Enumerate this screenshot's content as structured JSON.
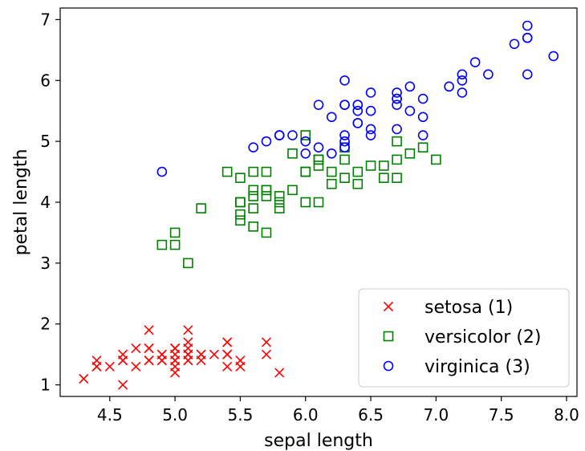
{
  "chart_data": {
    "type": "scatter",
    "title": "",
    "xlabel": "sepal length",
    "ylabel": "petal length",
    "xlim": [
      4.12,
      8.08
    ],
    "ylim": [
      0.81,
      7.19
    ],
    "xticks": [
      "4.5",
      "5.0",
      "5.5",
      "6.0",
      "6.5",
      "7.0",
      "7.5",
      "8.0"
    ],
    "yticks": [
      "1",
      "2",
      "3",
      "4",
      "5",
      "6",
      "7"
    ],
    "grid": false,
    "legend_position": "lower-right",
    "series": [
      {
        "name": "setosa (1)",
        "marker": "x",
        "color": "#ff0000",
        "points": [
          [
            5.1,
            1.4
          ],
          [
            4.9,
            1.4
          ],
          [
            4.7,
            1.3
          ],
          [
            4.6,
            1.5
          ],
          [
            5.0,
            1.4
          ],
          [
            5.4,
            1.7
          ],
          [
            4.6,
            1.4
          ],
          [
            5.0,
            1.5
          ],
          [
            4.4,
            1.4
          ],
          [
            4.9,
            1.5
          ],
          [
            5.4,
            1.5
          ],
          [
            4.8,
            1.6
          ],
          [
            4.8,
            1.4
          ],
          [
            4.3,
            1.1
          ],
          [
            5.8,
            1.2
          ],
          [
            5.7,
            1.5
          ],
          [
            5.4,
            1.3
          ],
          [
            5.1,
            1.4
          ],
          [
            5.7,
            1.7
          ],
          [
            5.1,
            1.5
          ],
          [
            5.4,
            1.7
          ],
          [
            5.1,
            1.5
          ],
          [
            4.6,
            1.0
          ],
          [
            5.1,
            1.7
          ],
          [
            4.8,
            1.9
          ],
          [
            5.0,
            1.6
          ],
          [
            5.0,
            1.6
          ],
          [
            5.2,
            1.5
          ],
          [
            5.2,
            1.4
          ],
          [
            4.7,
            1.6
          ],
          [
            4.8,
            1.6
          ],
          [
            5.4,
            1.5
          ],
          [
            5.2,
            1.5
          ],
          [
            5.5,
            1.4
          ],
          [
            4.9,
            1.5
          ],
          [
            5.0,
            1.2
          ],
          [
            5.5,
            1.3
          ],
          [
            4.9,
            1.4
          ],
          [
            4.4,
            1.3
          ],
          [
            5.1,
            1.5
          ],
          [
            5.0,
            1.3
          ],
          [
            4.5,
            1.3
          ],
          [
            4.4,
            1.3
          ],
          [
            5.0,
            1.6
          ],
          [
            5.1,
            1.9
          ],
          [
            4.8,
            1.4
          ],
          [
            5.1,
            1.6
          ],
          [
            4.6,
            1.4
          ],
          [
            5.3,
            1.5
          ],
          [
            5.0,
            1.4
          ]
        ]
      },
      {
        "name": "versicolor (2)",
        "marker": "square",
        "color": "#008000",
        "points": [
          [
            7.0,
            4.7
          ],
          [
            6.4,
            4.5
          ],
          [
            6.9,
            4.9
          ],
          [
            5.5,
            4.0
          ],
          [
            6.5,
            4.6
          ],
          [
            5.7,
            4.5
          ],
          [
            6.3,
            4.7
          ],
          [
            4.9,
            3.3
          ],
          [
            6.6,
            4.6
          ],
          [
            5.2,
            3.9
          ],
          [
            5.0,
            3.5
          ],
          [
            5.9,
            4.2
          ],
          [
            6.0,
            4.0
          ],
          [
            6.1,
            4.7
          ],
          [
            5.6,
            3.6
          ],
          [
            6.7,
            4.4
          ],
          [
            5.6,
            4.5
          ],
          [
            5.8,
            4.1
          ],
          [
            6.2,
            4.5
          ],
          [
            5.6,
            3.9
          ],
          [
            5.9,
            4.8
          ],
          [
            6.1,
            4.0
          ],
          [
            6.3,
            4.9
          ],
          [
            6.1,
            4.7
          ],
          [
            6.4,
            4.3
          ],
          [
            6.6,
            4.4
          ],
          [
            6.8,
            4.8
          ],
          [
            6.7,
            5.0
          ],
          [
            6.0,
            4.5
          ],
          [
            5.7,
            3.5
          ],
          [
            5.5,
            3.8
          ],
          [
            5.5,
            3.7
          ],
          [
            5.8,
            3.9
          ],
          [
            6.0,
            5.1
          ],
          [
            5.4,
            4.5
          ],
          [
            6.0,
            4.5
          ],
          [
            6.7,
            4.7
          ],
          [
            6.3,
            4.4
          ],
          [
            5.6,
            4.1
          ],
          [
            5.5,
            4.0
          ],
          [
            5.5,
            4.4
          ],
          [
            6.1,
            4.6
          ],
          [
            5.8,
            4.0
          ],
          [
            5.0,
            3.3
          ],
          [
            5.6,
            4.2
          ],
          [
            5.7,
            4.2
          ],
          [
            5.7,
            4.2
          ],
          [
            6.2,
            4.3
          ],
          [
            5.1,
            3.0
          ],
          [
            5.7,
            4.1
          ]
        ]
      },
      {
        "name": "virginica (3)",
        "marker": "circle",
        "color": "#0000ff",
        "points": [
          [
            6.3,
            6.0
          ],
          [
            5.8,
            5.1
          ],
          [
            7.1,
            5.9
          ],
          [
            6.3,
            5.6
          ],
          [
            6.5,
            5.8
          ],
          [
            7.6,
            6.6
          ],
          [
            4.9,
            4.5
          ],
          [
            7.3,
            6.3
          ],
          [
            6.7,
            5.8
          ],
          [
            7.2,
            6.1
          ],
          [
            6.5,
            5.1
          ],
          [
            6.4,
            5.3
          ],
          [
            6.8,
            5.5
          ],
          [
            5.7,
            5.0
          ],
          [
            5.8,
            5.1
          ],
          [
            6.4,
            5.3
          ],
          [
            6.5,
            5.5
          ],
          [
            7.7,
            6.7
          ],
          [
            7.7,
            6.9
          ],
          [
            6.0,
            5.0
          ],
          [
            6.9,
            5.7
          ],
          [
            5.6,
            4.9
          ],
          [
            7.7,
            6.7
          ],
          [
            6.3,
            4.9
          ],
          [
            6.7,
            5.7
          ],
          [
            7.2,
            6.0
          ],
          [
            6.2,
            4.8
          ],
          [
            6.1,
            4.9
          ],
          [
            6.4,
            5.6
          ],
          [
            7.2,
            5.8
          ],
          [
            7.4,
            6.1
          ],
          [
            7.9,
            6.4
          ],
          [
            6.4,
            5.6
          ],
          [
            6.3,
            5.1
          ],
          [
            6.1,
            5.6
          ],
          [
            7.7,
            6.1
          ],
          [
            6.3,
            5.6
          ],
          [
            6.4,
            5.5
          ],
          [
            6.0,
            4.8
          ],
          [
            6.9,
            5.4
          ],
          [
            6.7,
            5.6
          ],
          [
            6.9,
            5.1
          ],
          [
            5.8,
            5.1
          ],
          [
            6.8,
            5.9
          ],
          [
            6.7,
            5.7
          ],
          [
            6.7,
            5.2
          ],
          [
            6.3,
            5.0
          ],
          [
            6.5,
            5.2
          ],
          [
            6.2,
            5.4
          ],
          [
            5.9,
            5.1
          ]
        ]
      }
    ]
  }
}
